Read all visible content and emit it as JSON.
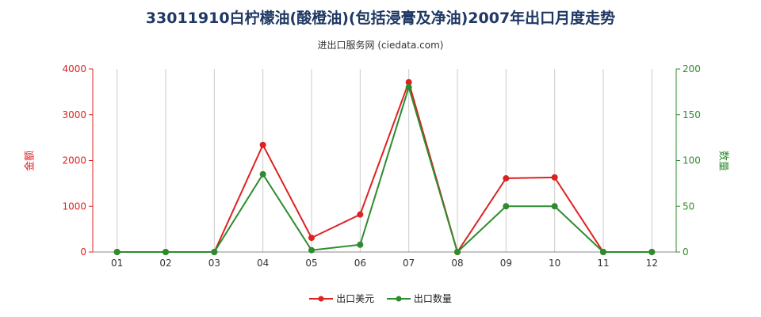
{
  "chart_data": {
    "type": "line",
    "title": "33011910白柠檬油(酸橙油)(包括浸膏及净油)2007年出口月度走势",
    "subtitle": "进出口服务网 (ciedata.com)",
    "categories": [
      "01",
      "02",
      "03",
      "04",
      "05",
      "06",
      "07",
      "08",
      "09",
      "10",
      "11",
      "12"
    ],
    "ylabel_left": "金额",
    "ylabel_right": "数量",
    "ylim_left": [
      0,
      4000
    ],
    "ylim_right": [
      0,
      200
    ],
    "yticks_left": [
      0,
      1000,
      2000,
      3000,
      4000
    ],
    "yticks_right": [
      0,
      50,
      100,
      150,
      200
    ],
    "grid": "vertical",
    "legend_position": "bottom",
    "series": [
      {
        "name": "出口美元",
        "axis": "left",
        "color": "#dd2222",
        "values": [
          0,
          0,
          0,
          2340,
          310,
          820,
          3710,
          0,
          1610,
          1630,
          0,
          0
        ]
      },
      {
        "name": "出口数量",
        "axis": "right",
        "color": "#2e8b2e",
        "values": [
          0,
          0,
          0,
          85,
          2,
          8,
          180,
          0,
          50,
          50,
          0,
          0
        ]
      }
    ]
  }
}
